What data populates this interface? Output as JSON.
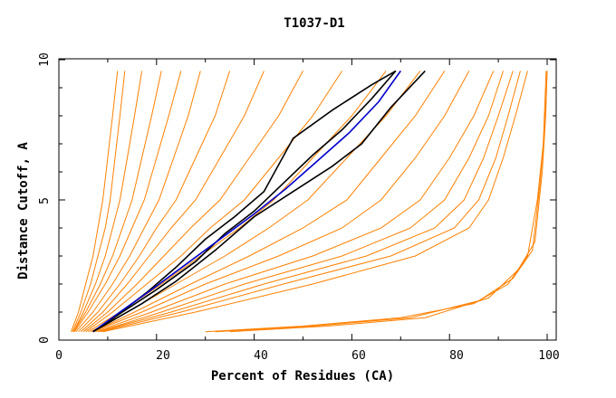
{
  "chart_data": {
    "type": "line",
    "title": "T1037-D1",
    "xlabel": "Percent of Residues (CA)",
    "ylabel": "Distance Cutoff, A",
    "xlim": [
      0,
      100
    ],
    "ylim": [
      0,
      10
    ],
    "x_ticks": [
      "0",
      "20",
      "40",
      "60",
      "80",
      "100"
    ],
    "y_ticks": [
      "0",
      "5",
      "10"
    ],
    "grid": false,
    "legend": "none",
    "colors": {
      "models": "#ff8000",
      "highlight_black": "#000000",
      "highlight_blue": "#0000cc"
    },
    "series": [
      {
        "group": "models",
        "x": [
          2.5,
          4.0,
          5.5,
          7.0,
          8.0,
          9.0,
          10.0,
          11.0,
          12.0
        ],
        "y": [
          0.3,
          1.0,
          2.0,
          3.0,
          4.0,
          5.0,
          6.5,
          8.0,
          9.6
        ]
      },
      {
        "group": "models",
        "x": [
          2.8,
          4.5,
          6.5,
          8.0,
          9.5,
          10.5,
          11.5,
          12.5,
          13.5
        ],
        "y": [
          0.3,
          1.0,
          2.0,
          3.0,
          4.0,
          5.0,
          6.5,
          8.0,
          9.6
        ]
      },
      {
        "group": "models",
        "x": [
          3.0,
          5.0,
          7.5,
          9.5,
          11.0,
          12.5,
          14.0,
          15.5,
          17.0
        ],
        "y": [
          0.3,
          1.0,
          2.0,
          3.0,
          4.0,
          5.0,
          6.5,
          8.0,
          9.6
        ]
      },
      {
        "group": "models",
        "x": [
          3.0,
          5.5,
          8.5,
          11.0,
          13.0,
          15.0,
          17.0,
          19.0,
          21.0
        ],
        "y": [
          0.3,
          1.0,
          2.0,
          3.0,
          4.0,
          5.0,
          6.5,
          8.0,
          9.6
        ]
      },
      {
        "group": "models",
        "x": [
          3.2,
          6.0,
          9.5,
          12.5,
          15.0,
          17.5,
          20.0,
          22.5,
          25.0
        ],
        "y": [
          0.3,
          1.0,
          2.0,
          3.0,
          4.0,
          5.0,
          6.5,
          8.0,
          9.6
        ]
      },
      {
        "group": "models",
        "x": [
          3.5,
          7.0,
          11.0,
          14.5,
          17.5,
          20.5,
          23.5,
          26.5,
          29.0
        ],
        "y": [
          0.3,
          1.0,
          2.0,
          3.0,
          4.0,
          5.0,
          6.5,
          8.0,
          9.6
        ]
      },
      {
        "group": "models",
        "x": [
          4.0,
          8.0,
          12.5,
          16.5,
          20.0,
          24.0,
          28.0,
          32.0,
          35.0
        ],
        "y": [
          0.3,
          1.0,
          2.0,
          3.0,
          4.0,
          5.0,
          6.5,
          8.0,
          9.6
        ]
      },
      {
        "group": "models",
        "x": [
          4.5,
          9.0,
          14.0,
          18.5,
          23.0,
          28.0,
          33.0,
          38.0,
          42.0
        ],
        "y": [
          0.3,
          1.0,
          2.0,
          3.0,
          4.0,
          5.0,
          6.5,
          8.0,
          9.6
        ]
      },
      {
        "group": "models",
        "x": [
          5.0,
          10.0,
          16.0,
          21.5,
          27.0,
          33.0,
          39.0,
          45.0,
          50.0
        ],
        "y": [
          0.3,
          1.0,
          2.0,
          3.0,
          4.0,
          5.0,
          6.5,
          8.0,
          9.6
        ]
      },
      {
        "group": "models",
        "x": [
          5.5,
          11.0,
          18.0,
          25.0,
          31.0,
          38.0,
          45.0,
          52.0,
          58.0
        ],
        "y": [
          0.3,
          1.0,
          2.0,
          3.0,
          4.0,
          5.0,
          6.5,
          8.0,
          9.6
        ]
      },
      {
        "group": "models",
        "x": [
          6.0,
          12.5,
          21.0,
          29.0,
          37.0,
          44.0,
          52.0,
          60.0,
          67.0
        ],
        "y": [
          0.3,
          1.0,
          2.0,
          3.0,
          4.0,
          5.0,
          6.5,
          8.0,
          9.6
        ]
      },
      {
        "group": "models",
        "x": [
          6.5,
          14.0,
          24.0,
          34.0,
          43.0,
          51.0,
          59.0,
          67.0,
          74.0
        ],
        "y": [
          0.3,
          1.0,
          2.0,
          3.0,
          4.0,
          5.0,
          6.5,
          8.0,
          9.6
        ]
      },
      {
        "group": "models",
        "x": [
          7.0,
          15.5,
          27.0,
          39.0,
          50.0,
          59.0,
          66.0,
          73.0,
          79.0
        ],
        "y": [
          0.3,
          1.0,
          2.0,
          3.0,
          4.0,
          5.0,
          6.5,
          8.0,
          9.6
        ]
      },
      {
        "group": "models",
        "x": [
          7.0,
          17.0,
          30.0,
          45.0,
          58.0,
          66.0,
          73.0,
          79.0,
          84.0
        ],
        "y": [
          0.3,
          1.0,
          2.0,
          3.0,
          4.0,
          5.0,
          6.5,
          8.0,
          9.6
        ]
      },
      {
        "group": "models",
        "x": [
          7.5,
          19.0,
          34.0,
          52.0,
          66.0,
          74.0,
          80.0,
          85.0,
          89.0
        ],
        "y": [
          0.3,
          1.0,
          2.0,
          3.0,
          4.0,
          5.0,
          6.5,
          8.0,
          9.6
        ]
      },
      {
        "group": "models",
        "x": [
          8.0,
          21.0,
          38.0,
          58.0,
          72.0,
          79.0,
          84.0,
          88.0,
          91.0
        ],
        "y": [
          0.3,
          1.0,
          2.0,
          3.0,
          4.0,
          5.0,
          6.5,
          8.0,
          9.6
        ]
      },
      {
        "group": "models",
        "x": [
          8.0,
          23.0,
          42.0,
          63.0,
          77.0,
          83.0,
          87.0,
          90.0,
          93.0
        ],
        "y": [
          0.3,
          1.0,
          2.0,
          3.0,
          4.0,
          5.0,
          6.5,
          8.0,
          9.6
        ]
      },
      {
        "group": "models",
        "x": [
          8.5,
          25.0,
          46.0,
          68.0,
          81.0,
          86.0,
          89.5,
          92.0,
          94.5
        ],
        "y": [
          0.3,
          1.0,
          2.0,
          3.0,
          4.0,
          5.0,
          6.5,
          8.0,
          9.6
        ]
      },
      {
        "group": "models",
        "x": [
          9.0,
          28.0,
          52.0,
          73.0,
          84.0,
          88.0,
          91.0,
          93.5,
          96.0
        ],
        "y": [
          0.3,
          1.0,
          2.0,
          3.0,
          4.0,
          5.0,
          6.5,
          8.0,
          9.6
        ]
      },
      {
        "group": "models",
        "x": [
          30.0,
          50.0,
          70.0,
          85.0,
          92.0,
          96.0,
          98.0,
          99.2,
          99.8
        ],
        "y": [
          0.3,
          0.5,
          0.8,
          1.3,
          2.0,
          3.0,
          5.0,
          7.0,
          9.6
        ]
      },
      {
        "group": "models",
        "x": [
          32.0,
          52.0,
          72.0,
          86.0,
          93.0,
          97.0,
          98.5,
          99.5,
          100.0
        ],
        "y": [
          0.3,
          0.5,
          0.8,
          1.4,
          2.2,
          3.2,
          5.5,
          7.5,
          9.6
        ]
      },
      {
        "group": "models",
        "x": [
          35.0,
          55.0,
          75.0,
          88.0,
          94.0,
          97.5,
          99.0,
          99.7,
          100.0
        ],
        "y": [
          0.3,
          0.5,
          0.8,
          1.5,
          2.5,
          3.5,
          6.0,
          8.0,
          9.6
        ]
      },
      {
        "group": "highlight",
        "color": "black",
        "x": [
          7.0,
          12.0,
          18.0,
          24.0,
          30.0,
          36.0,
          42.0,
          48.0,
          56.0,
          64.0,
          69.0
        ],
        "y": [
          0.3,
          0.9,
          1.7,
          2.6,
          3.6,
          4.4,
          5.3,
          7.2,
          8.2,
          9.1,
          9.6
        ]
      },
      {
        "group": "highlight",
        "color": "black",
        "x": [
          7.0,
          13.0,
          20.0,
          28.0,
          34.0,
          40.0,
          46.0,
          52.0,
          58.0,
          64.0,
          69.0
        ],
        "y": [
          0.3,
          1.0,
          1.8,
          2.8,
          3.8,
          4.6,
          5.6,
          6.6,
          7.5,
          8.6,
          9.6
        ]
      },
      {
        "group": "highlight",
        "color": "blue",
        "x": [
          7.0,
          12.5,
          19.0,
          26.0,
          33.0,
          40.0,
          46.5,
          53.0,
          59.5,
          65.5,
          70.0
        ],
        "y": [
          0.3,
          1.0,
          1.8,
          2.7,
          3.6,
          4.5,
          5.4,
          6.4,
          7.4,
          8.5,
          9.6
        ]
      },
      {
        "group": "highlight",
        "color": "black",
        "x": [
          7.0,
          11.0,
          17.0,
          24.0,
          32.0,
          40.0,
          48.0,
          56.0,
          62.0,
          68.0,
          75.0
        ],
        "y": [
          0.3,
          0.7,
          1.3,
          2.1,
          3.2,
          4.4,
          5.3,
          6.2,
          7.0,
          8.3,
          9.6
        ]
      }
    ]
  }
}
